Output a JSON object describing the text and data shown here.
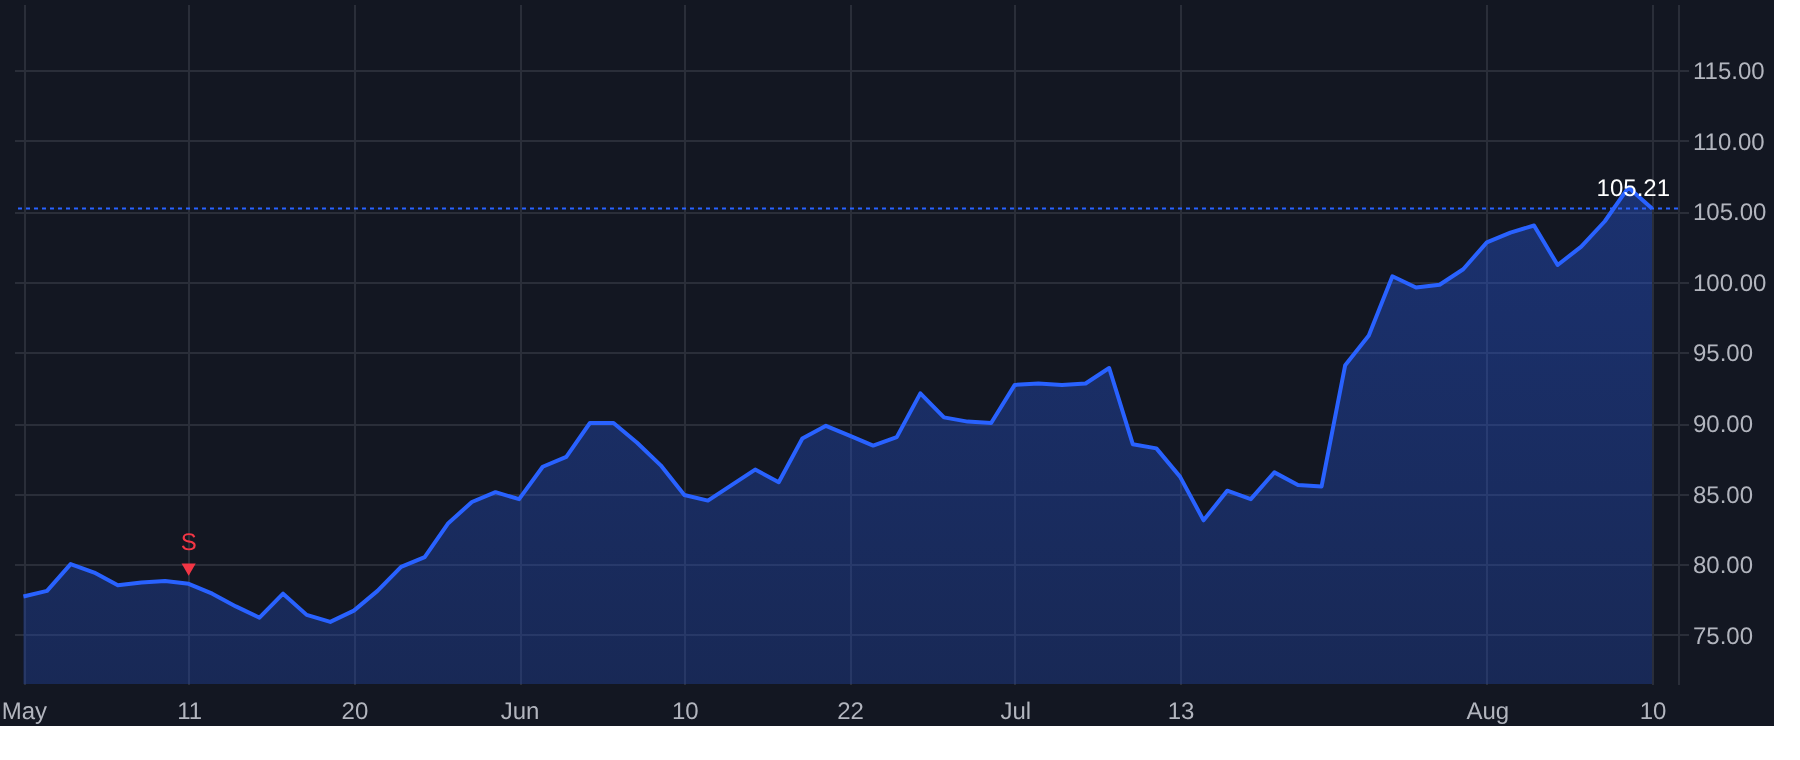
{
  "chart_data": {
    "type": "area",
    "categories": [
      "May",
      null,
      null,
      null,
      null,
      null,
      null,
      "11",
      null,
      null,
      null,
      null,
      null,
      null,
      "20",
      null,
      null,
      null,
      null,
      null,
      null,
      "Jun",
      null,
      null,
      null,
      null,
      null,
      null,
      "10",
      null,
      null,
      null,
      null,
      null,
      null,
      "22",
      null,
      null,
      null,
      null,
      null,
      null,
      "Jul",
      null,
      null,
      null,
      null,
      null,
      null,
      "13",
      null,
      null,
      null,
      null,
      null,
      null,
      null,
      null,
      null,
      null,
      null,
      null,
      "Aug",
      null,
      null,
      null,
      null,
      null,
      null,
      "10"
    ],
    "series": [
      {
        "color": "#2962ff",
        "values": [
          77.7,
          78.1,
          80.0,
          79.4,
          78.5,
          78.7,
          78.8,
          78.6,
          77.9,
          77.0,
          76.2,
          77.9,
          76.4,
          75.9,
          76.7,
          78.1,
          79.8,
          80.5,
          82.9,
          84.4,
          85.1,
          84.6,
          86.9,
          87.6,
          90.0,
          90.0,
          88.6,
          87.0,
          84.9,
          84.5,
          85.6,
          86.7,
          85.8,
          88.9,
          89.8,
          89.1,
          88.4,
          89.0,
          92.1,
          90.4,
          90.1,
          90.0,
          92.7,
          92.8,
          92.7,
          92.8,
          93.9,
          88.5,
          88.2,
          86.2,
          83.1,
          85.2,
          84.6,
          86.5,
          85.6,
          85.5,
          94.1,
          96.2,
          100.4,
          99.6,
          99.8,
          100.9,
          102.8,
          103.5,
          104.0,
          101.2,
          102.5,
          104.3,
          106.7,
          105.21
        ]
      }
    ],
    "ylim": [
      71.5,
      119.7
    ],
    "yticks": [
      {
        "value": 75,
        "label": "75.00"
      },
      {
        "value": 80,
        "label": "80.00"
      },
      {
        "value": 85,
        "label": "85.00"
      },
      {
        "value": 90,
        "label": "90.00"
      },
      {
        "value": 95,
        "label": "95.00"
      },
      {
        "value": 100,
        "label": "100.00"
      },
      {
        "value": 105,
        "label": "105.00"
      },
      {
        "value": 110,
        "label": "110.00"
      },
      {
        "value": 115,
        "label": "115.00"
      }
    ],
    "ref_lines": [
      {
        "axis": "y",
        "value": 105.21,
        "label": "105.21",
        "color": "#2962ff",
        "line_style": "dotted"
      }
    ],
    "annotations": [
      {
        "text": "S",
        "x": "11",
        "y": 79.6
      }
    ],
    "grid": true
  }
}
